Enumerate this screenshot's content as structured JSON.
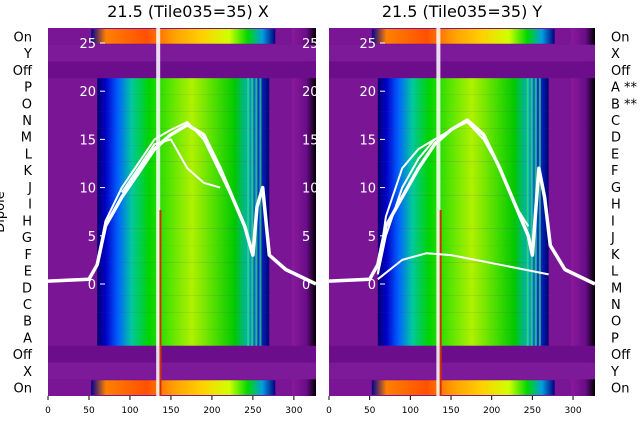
{
  "chart_data": [
    {
      "type": "heatmap",
      "title": "21.5 (Tile035=35) X",
      "ylabel": "Dipole",
      "xticks": [
        0,
        50,
        100,
        150,
        200,
        250,
        300
      ],
      "xlim": [
        0,
        327
      ],
      "overlay_yticks": [
        0,
        5,
        10,
        15,
        20,
        25
      ],
      "row_labels": [
        "On",
        "Y",
        "Off",
        "P",
        "O",
        "N",
        "M",
        "L",
        "K",
        "J",
        "I",
        "H",
        "G",
        "F",
        "E",
        "D",
        "C",
        "B",
        "A",
        "Off",
        "X",
        "On"
      ],
      "band_edges": [
        60,
        270
      ],
      "series": [
        {
          "name": "",
          "x": [
            0,
            50,
            60,
            70,
            90,
            110,
            130,
            150,
            170,
            190,
            210,
            230,
            240,
            250,
            255,
            262,
            270,
            290,
            327
          ],
          "y": [
            0.3,
            0.5,
            2,
            6,
            9,
            11.5,
            14,
            15.5,
            16.5,
            15.5,
            12,
            8,
            6,
            3,
            8,
            10,
            3,
            1.5,
            0
          ]
        },
        {
          "name": "",
          "x": [
            60,
            70,
            90,
            110,
            130,
            150,
            170,
            190,
            210,
            230
          ],
          "y": [
            2,
            6.5,
            10,
            12.5,
            15,
            16,
            16.8,
            15,
            11.5,
            8
          ]
        },
        {
          "name": "",
          "x": [
            90,
            110,
            130,
            150,
            170,
            190,
            210
          ],
          "y": [
            9.5,
            12,
            14.5,
            15,
            12,
            10.5,
            10
          ]
        }
      ]
    },
    {
      "type": "heatmap",
      "title": "21.5 (Tile035=35) Y",
      "ylabel": "",
      "xticks": [
        0,
        50,
        100,
        150,
        200,
        250,
        300
      ],
      "xlim": [
        0,
        327
      ],
      "overlay_yticks": [
        0,
        5,
        10,
        15,
        20,
        25
      ],
      "row_labels": [
        "On",
        "X",
        "Off",
        "A **",
        "B **",
        "C",
        "D",
        "E",
        "F",
        "G",
        "H",
        "I",
        "J",
        "K",
        "L",
        "M",
        "N",
        "O",
        "P",
        "Off",
        "Y",
        "On"
      ],
      "band_edges": [
        60,
        270
      ],
      "series": [
        {
          "name": "",
          "x": [
            0,
            50,
            60,
            70,
            90,
            110,
            130,
            150,
            170,
            190,
            210,
            230,
            245,
            250,
            258,
            265,
            272,
            290,
            327
          ],
          "y": [
            0.3,
            0.5,
            2,
            6,
            9,
            12,
            14.5,
            16,
            17,
            15.5,
            12,
            8,
            5,
            3,
            12,
            9,
            4,
            1.5,
            0
          ]
        },
        {
          "name": "",
          "x": [
            60,
            70,
            90,
            110,
            130,
            150,
            170,
            190,
            210,
            230,
            245
          ],
          "y": [
            1,
            5,
            10,
            13,
            15,
            16,
            16.8,
            15,
            12,
            8,
            6
          ]
        },
        {
          "name": "",
          "x": [
            60,
            90,
            120,
            150,
            180,
            210,
            240,
            270
          ],
          "y": [
            0.5,
            2.5,
            3.2,
            3,
            2.5,
            2,
            1.5,
            1
          ]
        },
        {
          "name": "",
          "x": [
            60,
            70,
            90,
            110,
            130
          ],
          "y": [
            1,
            7,
            12,
            14,
            15
          ]
        }
      ]
    }
  ]
}
